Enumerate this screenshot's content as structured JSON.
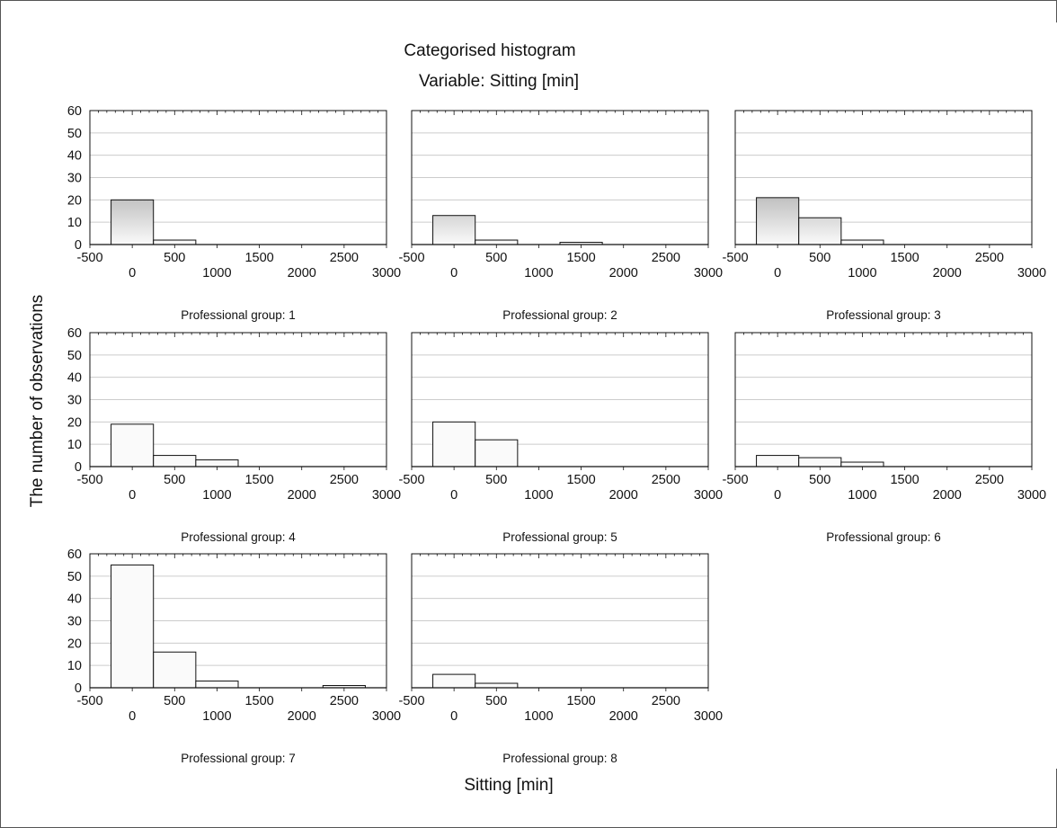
{
  "title": "Categorised histogram",
  "subtitle": "Variable:  Sitting [min]",
  "xlabel": "Sitting [min]",
  "ylabel": "The number of  observations",
  "colors": {
    "bar_light": "#fafafa",
    "bar_dark": "#555555",
    "grid": "#cccccc",
    "axis": "#111111"
  },
  "chart_data": [
    {
      "type": "bar",
      "panel_title": "Professional group: 1",
      "bin_edges": [
        -250,
        250,
        750,
        1250,
        1750,
        2250,
        2750
      ],
      "values": [
        20,
        2,
        0,
        0,
        0,
        0
      ],
      "xlim": [
        -500,
        3000
      ],
      "ylim": [
        0,
        60
      ],
      "xticks_upper": [
        "-500",
        "500",
        "1500",
        "2500"
      ],
      "xticks_lower": [
        "0",
        "1000",
        "2000",
        "3000"
      ],
      "yticks": [
        "0",
        "10",
        "20",
        "30",
        "40",
        "50",
        "60"
      ]
    },
    {
      "type": "bar",
      "panel_title": "Professional group: 2",
      "bin_edges": [
        -250,
        250,
        750,
        1250,
        1750,
        2250,
        2750
      ],
      "values": [
        13,
        2,
        0,
        1,
        0,
        0
      ],
      "xlim": [
        -500,
        3000
      ],
      "ylim": [
        0,
        60
      ],
      "xticks_upper": [
        "-500",
        "500",
        "1500",
        "2500"
      ],
      "xticks_lower": [
        "0",
        "1000",
        "2000",
        "3000"
      ]
    },
    {
      "type": "bar",
      "panel_title": "Professional group: 3",
      "bin_edges": [
        -250,
        250,
        750,
        1250,
        1750,
        2250,
        2750
      ],
      "values": [
        21,
        12,
        2,
        0,
        0,
        0
      ],
      "xlim": [
        -500,
        3000
      ],
      "ylim": [
        0,
        60
      ],
      "xticks_upper": [
        "-500",
        "500",
        "1500",
        "2500"
      ],
      "xticks_lower": [
        "0",
        "1000",
        "2000",
        "3000"
      ]
    },
    {
      "type": "bar",
      "panel_title": "Professional group: 4",
      "bin_edges": [
        -250,
        250,
        750,
        1250,
        1750,
        2250,
        2750
      ],
      "values": [
        19,
        5,
        3,
        0,
        0,
        0
      ],
      "xlim": [
        -500,
        3000
      ],
      "ylim": [
        0,
        60
      ],
      "xticks_upper": [
        "-500",
        "500",
        "1500",
        "2500"
      ],
      "xticks_lower": [
        "0",
        "1000",
        "2000",
        "3000"
      ],
      "yticks": [
        "0",
        "10",
        "20",
        "30",
        "40",
        "50",
        "60"
      ]
    },
    {
      "type": "bar",
      "panel_title": "Professional group: 5",
      "bin_edges": [
        -250,
        250,
        750,
        1250,
        1750,
        2250,
        2750
      ],
      "values": [
        20,
        12,
        0,
        0,
        0,
        0
      ],
      "xlim": [
        -500,
        3000
      ],
      "ylim": [
        0,
        60
      ],
      "xticks_upper": [
        "-500",
        "500",
        "1500",
        "2500"
      ],
      "xticks_lower": [
        "0",
        "1000",
        "2000",
        "3000"
      ]
    },
    {
      "type": "bar",
      "panel_title": "Professional group: 6",
      "bin_edges": [
        -250,
        250,
        750,
        1250,
        1750,
        2250,
        2750
      ],
      "values": [
        5,
        4,
        2,
        0,
        0,
        0
      ],
      "xlim": [
        -500,
        3000
      ],
      "ylim": [
        0,
        60
      ],
      "xticks_upper": [
        "-500",
        "500",
        "1500",
        "2500"
      ],
      "xticks_lower": [
        "0",
        "1000",
        "2000",
        "3000"
      ]
    },
    {
      "type": "bar",
      "panel_title": "Professional group: 7",
      "bin_edges": [
        -250,
        250,
        750,
        1250,
        1750,
        2250,
        2750
      ],
      "values": [
        55,
        16,
        3,
        0,
        0,
        1
      ],
      "xlim": [
        -500,
        3000
      ],
      "ylim": [
        0,
        60
      ],
      "xticks_upper": [
        "-500",
        "500",
        "1500",
        "2500"
      ],
      "xticks_lower": [
        "0",
        "1000",
        "2000",
        "3000"
      ],
      "yticks": [
        "0",
        "10",
        "20",
        "30",
        "40",
        "50",
        "60"
      ]
    },
    {
      "type": "bar",
      "panel_title": "Professional group:  8",
      "bin_edges": [
        -250,
        250,
        750,
        1250,
        1750,
        2250,
        2750
      ],
      "values": [
        6,
        2,
        0,
        0,
        0,
        0
      ],
      "xlim": [
        -500,
        3000
      ],
      "ylim": [
        0,
        60
      ],
      "xticks_upper": [
        "-500",
        "500",
        "1500",
        "2500"
      ],
      "xticks_lower": [
        "0",
        "1000",
        "2000",
        "3000"
      ]
    }
  ]
}
